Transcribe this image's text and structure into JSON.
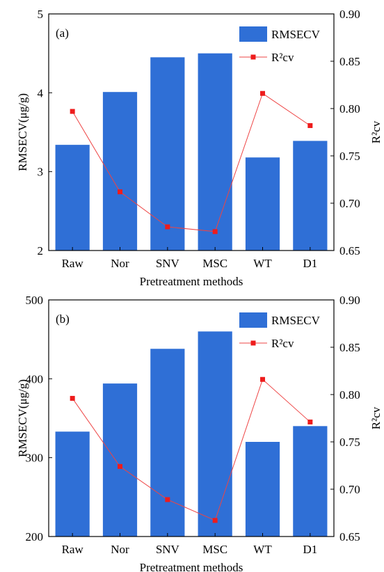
{
  "colors": {
    "bar": "#2f6fd6",
    "line": "#ee4444",
    "marker": "#ee1c1c"
  },
  "chart_data": [
    {
      "type": "bar",
      "panel_label": "(a)",
      "categories": [
        "Raw",
        "Nor",
        "SNV",
        "MSC",
        "WT",
        "D1"
      ],
      "xlabel": "Pretreatment methods",
      "ylabel": "RMSECV(μg/g)",
      "ylim": [
        2,
        5
      ],
      "yticks": [
        "2",
        "3",
        "4",
        "5"
      ],
      "y2label": "R²cv",
      "y2lim": [
        0.65,
        0.9
      ],
      "y2ticks": [
        "0.65",
        "0.70",
        "0.75",
        "0.80",
        "0.85",
        "0.90"
      ],
      "legend_position": "top-right",
      "series": [
        {
          "name": "RMSECV",
          "type": "bar",
          "axis": "left",
          "values": [
            3.34,
            4.01,
            4.45,
            4.5,
            3.18,
            3.39
          ]
        },
        {
          "name": "R²cv",
          "type": "line",
          "axis": "right",
          "values": [
            0.797,
            0.712,
            0.675,
            0.67,
            0.816,
            0.782
          ]
        }
      ]
    },
    {
      "type": "bar",
      "panel_label": "(b)",
      "categories": [
        "Raw",
        "Nor",
        "SNV",
        "MSC",
        "WT",
        "D1"
      ],
      "xlabel": "Pretreatment methods",
      "ylabel": "RMSECV(μg/g)",
      "ylim": [
        200,
        500
      ],
      "yticks": [
        "200",
        "300",
        "400",
        "500"
      ],
      "y2label": "R²cv",
      "y2lim": [
        0.65,
        0.9
      ],
      "y2ticks": [
        "0.65",
        "0.70",
        "0.75",
        "0.80",
        "0.85",
        "0.90"
      ],
      "legend_position": "top-right",
      "series": [
        {
          "name": "RMSECV",
          "type": "bar",
          "axis": "left",
          "values": [
            333,
            394,
            438,
            460,
            320,
            340
          ]
        },
        {
          "name": "R²cv",
          "type": "line",
          "axis": "right",
          "values": [
            0.796,
            0.724,
            0.689,
            0.667,
            0.816,
            0.771
          ]
        }
      ]
    }
  ]
}
